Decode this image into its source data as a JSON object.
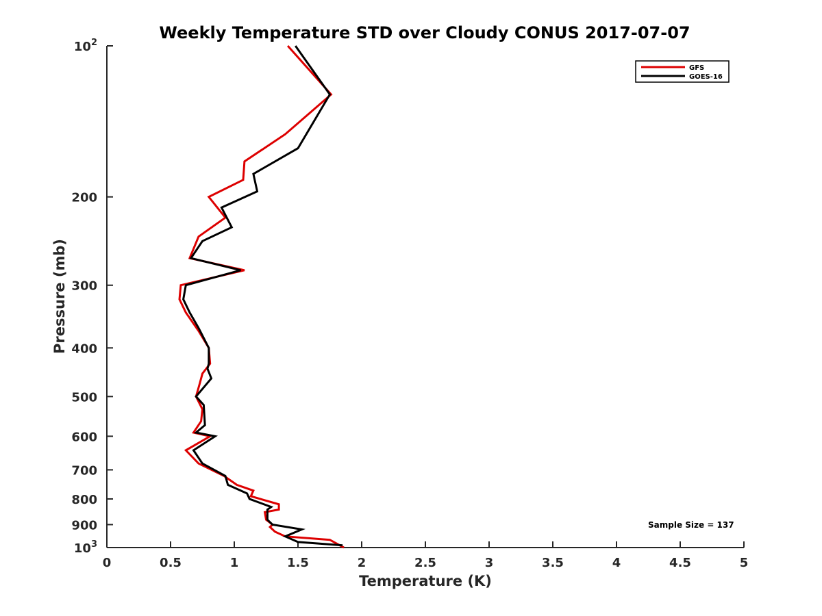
{
  "chart_data": {
    "type": "line",
    "title": "Weekly Temperature STD over Cloudy CONUS 2017-07-07",
    "xlabel": "Temperature (K)",
    "ylabel": "Pressure (mb)",
    "xlim": [
      0,
      5
    ],
    "ylim": [
      100,
      1000
    ],
    "yscale": "log",
    "y_reversed": true,
    "grid": false,
    "legend_position": "top-right",
    "x_ticks": [
      {
        "value": 0,
        "label": "0"
      },
      {
        "value": 0.5,
        "label": "0.5"
      },
      {
        "value": 1,
        "label": "1"
      },
      {
        "value": 1.5,
        "label": "1.5"
      },
      {
        "value": 2,
        "label": "2"
      },
      {
        "value": 2.5,
        "label": "2.5"
      },
      {
        "value": 3,
        "label": "3"
      },
      {
        "value": 3.5,
        "label": "3.5"
      },
      {
        "value": 4,
        "label": "4"
      },
      {
        "value": 4.5,
        "label": "4.5"
      },
      {
        "value": 5,
        "label": "5"
      }
    ],
    "y_ticks": [
      {
        "value": 100,
        "label": "10",
        "sup": "2"
      },
      {
        "value": 200,
        "label": "200"
      },
      {
        "value": 300,
        "label": "300"
      },
      {
        "value": 400,
        "label": "400"
      },
      {
        "value": 500,
        "label": "500"
      },
      {
        "value": 600,
        "label": "600"
      },
      {
        "value": 700,
        "label": "700"
      },
      {
        "value": 800,
        "label": "800"
      },
      {
        "value": 900,
        "label": "900"
      },
      {
        "value": 1000,
        "label": "10",
        "sup": "3"
      }
    ],
    "annotation": "Sample Size = 137",
    "series": [
      {
        "name": "GFS",
        "color": "#dd0000",
        "points": [
          [
            1.42,
            100
          ],
          [
            1.76,
            125
          ],
          [
            1.4,
            150
          ],
          [
            1.08,
            170
          ],
          [
            1.07,
            185
          ],
          [
            0.8,
            200
          ],
          [
            0.93,
            220
          ],
          [
            0.72,
            240
          ],
          [
            0.65,
            265
          ],
          [
            1.08,
            280
          ],
          [
            0.58,
            300
          ],
          [
            0.57,
            320
          ],
          [
            0.62,
            340
          ],
          [
            0.72,
            370
          ],
          [
            0.8,
            400
          ],
          [
            0.81,
            430
          ],
          [
            0.75,
            450
          ],
          [
            0.73,
            470
          ],
          [
            0.7,
            500
          ],
          [
            0.75,
            530
          ],
          [
            0.74,
            560
          ],
          [
            0.68,
            590
          ],
          [
            0.81,
            600
          ],
          [
            0.62,
            640
          ],
          [
            0.72,
            680
          ],
          [
            0.92,
            720
          ],
          [
            1.02,
            750
          ],
          [
            1.15,
            770
          ],
          [
            1.13,
            790
          ],
          [
            1.35,
            820
          ],
          [
            1.35,
            840
          ],
          [
            1.24,
            850
          ],
          [
            1.25,
            880
          ],
          [
            1.3,
            900
          ],
          [
            1.28,
            910
          ],
          [
            1.32,
            930
          ],
          [
            1.4,
            950
          ],
          [
            1.75,
            965
          ],
          [
            1.86,
            1000
          ]
        ]
      },
      {
        "name": "GOES-16",
        "color": "#000000",
        "points": [
          [
            1.48,
            100
          ],
          [
            1.75,
            125
          ],
          [
            1.5,
            160
          ],
          [
            1.15,
            180
          ],
          [
            1.18,
            195
          ],
          [
            0.9,
            210
          ],
          [
            0.98,
            230
          ],
          [
            0.75,
            245
          ],
          [
            0.66,
            265
          ],
          [
            1.05,
            280
          ],
          [
            0.62,
            300
          ],
          [
            0.6,
            320
          ],
          [
            0.65,
            340
          ],
          [
            0.72,
            365
          ],
          [
            0.8,
            400
          ],
          [
            0.8,
            430
          ],
          [
            0.79,
            440
          ],
          [
            0.82,
            460
          ],
          [
            0.7,
            500
          ],
          [
            0.76,
            520
          ],
          [
            0.77,
            570
          ],
          [
            0.7,
            590
          ],
          [
            0.85,
            600
          ],
          [
            0.68,
            640
          ],
          [
            0.75,
            680
          ],
          [
            0.93,
            720
          ],
          [
            0.95,
            750
          ],
          [
            1.1,
            780
          ],
          [
            1.12,
            800
          ],
          [
            1.29,
            830
          ],
          [
            1.26,
            840
          ],
          [
            1.26,
            880
          ],
          [
            1.3,
            900
          ],
          [
            1.53,
            920
          ],
          [
            1.4,
            950
          ],
          [
            1.5,
            975
          ],
          [
            1.85,
            990
          ]
        ]
      }
    ]
  }
}
